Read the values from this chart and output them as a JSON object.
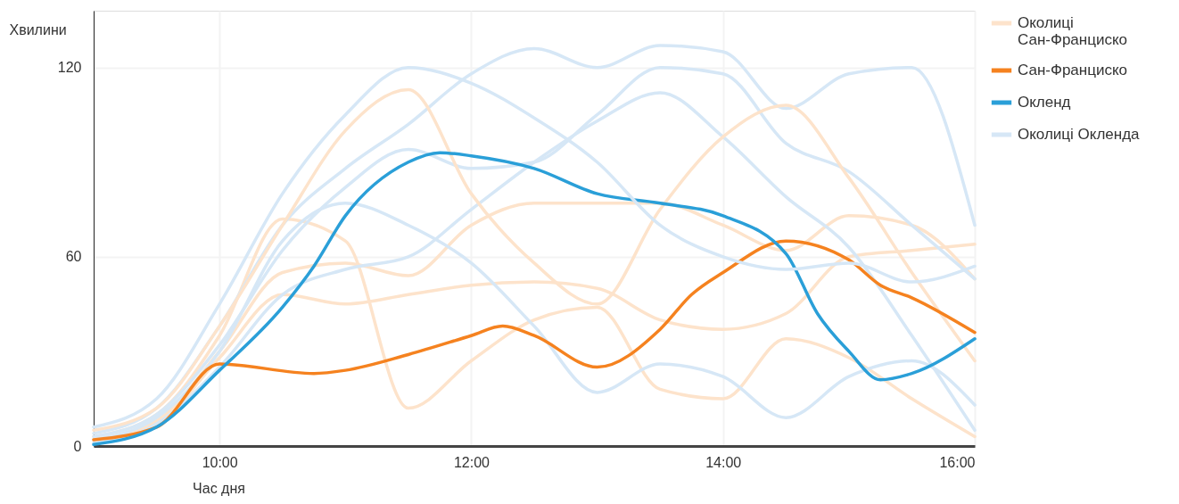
{
  "chart_data": {
    "type": "line",
    "xlabel": "Час дня",
    "ylabel": "Хвилини",
    "x": [
      9,
      9.5,
      10,
      10.5,
      11,
      11.5,
      12,
      12.5,
      13,
      13.5,
      14,
      14.5,
      15,
      15.5,
      16
    ],
    "xlim": [
      9,
      16
    ],
    "xticks": [
      {
        "value": 10,
        "label": "10:00"
      },
      {
        "value": 12,
        "label": "12:00"
      },
      {
        "value": 14,
        "label": "14:00"
      },
      {
        "value": 16,
        "label": "16:00"
      }
    ],
    "ylim": [
      0,
      138
    ],
    "yticks": [
      0,
      60,
      120
    ],
    "grid": true,
    "legend": "right",
    "marker": "none",
    "line_style": "solid",
    "series": [
      {
        "name": "Околиці Сан-Франциско",
        "color": "#fde3cb",
        "values": [
          5,
          12,
          38,
          70,
          100,
          113,
          80,
          58,
          45,
          75,
          98,
          108,
          85,
          55,
          27
        ]
      },
      {
        "color": "#fde3cb",
        "values": [
          3,
          10,
          35,
          72,
          65,
          12,
          27,
          40,
          44,
          18,
          15,
          34,
          28,
          15,
          3
        ]
      },
      {
        "color": "#fde3cb",
        "values": [
          2,
          8,
          30,
          55,
          58,
          54,
          70,
          77,
          77,
          77,
          70,
          62,
          73,
          70,
          53
        ]
      },
      {
        "color": "#fde3cb",
        "values": [
          2,
          7,
          28,
          48,
          45,
          48,
          51,
          52,
          50,
          40,
          37,
          42,
          60,
          62,
          64
        ]
      },
      {
        "name": "Сан-Франциско",
        "color": "#f5821f",
        "x": [
          9,
          9.5,
          10,
          10.75,
          11,
          11.5,
          12,
          12.25,
          12.5,
          13,
          13.5,
          13.75,
          14,
          14.5,
          15,
          15.25,
          15.5,
          16
        ],
        "values": [
          2,
          6,
          26,
          23,
          24,
          29,
          35,
          38,
          35,
          25,
          37,
          48,
          55,
          65,
          59,
          51,
          47,
          36
        ]
      },
      {
        "name": "Окленд",
        "color": "#2a9fd8",
        "x": [
          9,
          9.5,
          10,
          10.5,
          10.75,
          11,
          11.5,
          11.75,
          12,
          12.5,
          13,
          13.5,
          14,
          14.5,
          14.75,
          15,
          15.25,
          15.5,
          16
        ],
        "values": [
          0.5,
          6,
          24,
          44,
          57,
          73,
          90,
          93,
          92,
          88,
          80,
          77,
          73,
          61,
          42,
          30,
          21,
          23,
          34
        ]
      },
      {
        "name": "Околиці Окленда",
        "color": "#d6e7f6",
        "values": [
          6,
          15,
          45,
          80,
          105,
          120,
          115,
          104,
          90,
          70,
          60,
          56,
          58,
          52,
          57
        ]
      },
      {
        "color": "#d6e7f6",
        "values": [
          4,
          12,
          38,
          70,
          88,
          102,
          118,
          126,
          120,
          127,
          125,
          107,
          118,
          120,
          70
        ]
      },
      {
        "color": "#d6e7f6",
        "values": [
          3,
          10,
          32,
          62,
          82,
          94,
          88,
          90,
          105,
          120,
          118,
          96,
          87,
          70,
          53
        ]
      },
      {
        "color": "#d6e7f6",
        "values": [
          2,
          9,
          30,
          65,
          77,
          70,
          58,
          38,
          17,
          26,
          22,
          9,
          22,
          27,
          13
        ]
      },
      {
        "color": "#d6e7f6",
        "values": [
          1,
          7,
          25,
          48,
          56,
          60,
          75,
          90,
          103,
          112,
          98,
          79,
          63,
          35,
          5
        ]
      }
    ]
  }
}
